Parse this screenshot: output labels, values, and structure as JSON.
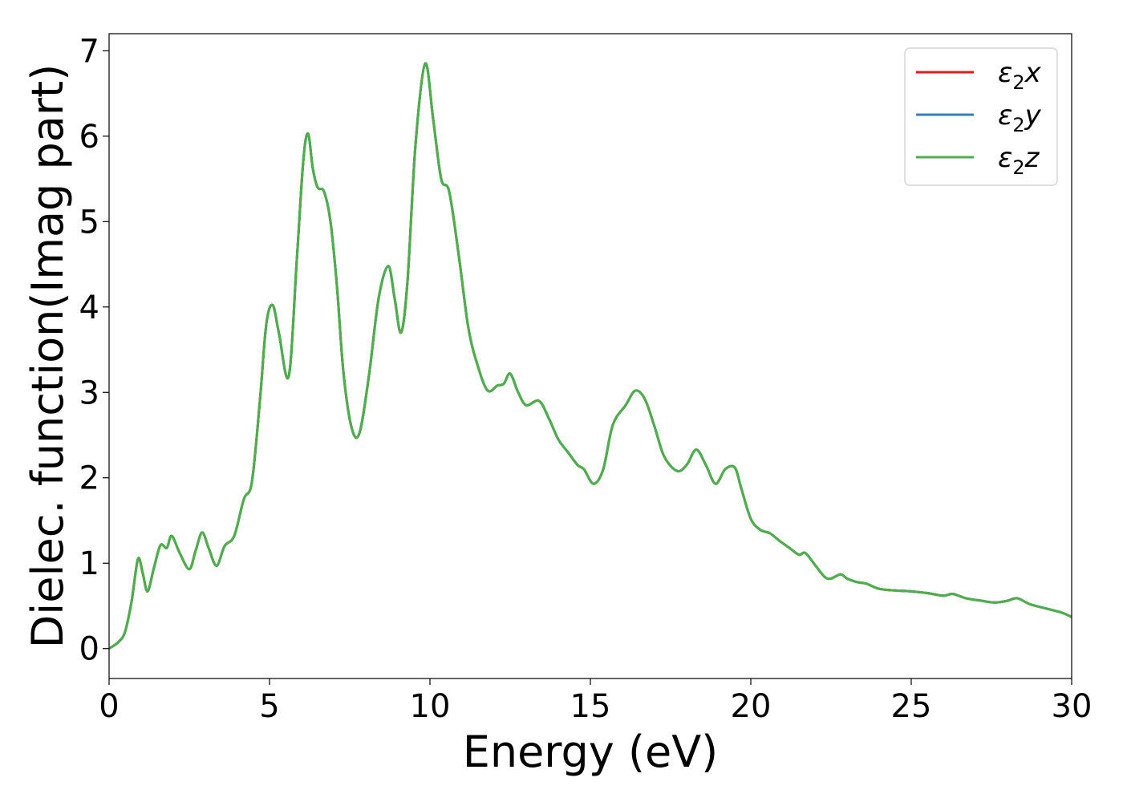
{
  "chart_data": {
    "type": "line",
    "title": "",
    "xlabel": "Energy (eV)",
    "ylabel": "Dielec. function(Imag part)",
    "xlim": [
      0,
      30
    ],
    "ylim": [
      -0.35,
      7.2
    ],
    "xticks": [
      0,
      5,
      10,
      15,
      20,
      25,
      30
    ],
    "yticks": [
      0,
      1,
      2,
      3,
      4,
      5,
      6,
      7
    ],
    "grid": false,
    "legend": {
      "placement": "top-right"
    },
    "series": [
      {
        "name": "ε₂x",
        "name_base": "ε",
        "name_sub": "2",
        "name_axis": "x",
        "color": "#e41a1c"
      },
      {
        "name": "ε₂y",
        "name_base": "ε",
        "name_sub": "2",
        "name_axis": "y",
        "color": "#377eb8"
      },
      {
        "name": "ε₂z",
        "name_base": "ε",
        "name_sub": "2",
        "name_axis": "z",
        "color": "#4daf4a"
      }
    ],
    "x": [
      0,
      0.3,
      0.5,
      0.7,
      0.9,
      1.05,
      1.2,
      1.4,
      1.6,
      1.8,
      1.95,
      2.2,
      2.5,
      2.7,
      2.9,
      3.1,
      3.35,
      3.6,
      3.9,
      4.2,
      4.45,
      4.7,
      4.9,
      5.1,
      5.3,
      5.6,
      5.85,
      6.05,
      6.2,
      6.35,
      6.5,
      6.7,
      6.9,
      7.1,
      7.3,
      7.55,
      7.8,
      8.1,
      8.4,
      8.7,
      8.9,
      9.1,
      9.3,
      9.55,
      9.85,
      10.1,
      10.35,
      10.6,
      10.9,
      11.2,
      11.5,
      11.8,
      12.1,
      12.3,
      12.5,
      12.75,
      13.0,
      13.4,
      13.7,
      14.0,
      14.3,
      14.6,
      14.8,
      15.1,
      15.4,
      15.7,
      16.1,
      16.4,
      16.7,
      17.0,
      17.3,
      17.7,
      18.0,
      18.3,
      18.6,
      18.9,
      19.2,
      19.5,
      19.7,
      20.0,
      20.3,
      20.6,
      20.9,
      21.2,
      21.5,
      21.7,
      22.0,
      22.3,
      22.5,
      22.8,
      23.0,
      23.3,
      23.6,
      24.0,
      24.5,
      25.0,
      25.5,
      26.0,
      26.3,
      26.7,
      27.2,
      27.6,
      28.0,
      28.3,
      28.7,
      29.2,
      29.7,
      30.0
    ],
    "values": [
      0.0,
      0.08,
      0.2,
      0.55,
      1.05,
      0.88,
      0.67,
      0.95,
      1.21,
      1.18,
      1.32,
      1.12,
      0.93,
      1.15,
      1.36,
      1.18,
      0.97,
      1.2,
      1.32,
      1.75,
      1.95,
      2.9,
      3.8,
      4.02,
      3.68,
      3.19,
      4.55,
      5.7,
      6.03,
      5.62,
      5.4,
      5.35,
      5.0,
      4.25,
      3.25,
      2.6,
      2.52,
      3.2,
      4.1,
      4.48,
      4.1,
      3.7,
      4.3,
      5.9,
      6.85,
      6.2,
      5.5,
      5.35,
      4.6,
      3.75,
      3.3,
      3.02,
      3.08,
      3.1,
      3.22,
      3.0,
      2.85,
      2.9,
      2.7,
      2.45,
      2.3,
      2.15,
      2.1,
      1.93,
      2.1,
      2.62,
      2.85,
      3.02,
      2.92,
      2.6,
      2.25,
      2.08,
      2.15,
      2.33,
      2.15,
      1.93,
      2.1,
      2.12,
      1.88,
      1.52,
      1.39,
      1.35,
      1.26,
      1.18,
      1.1,
      1.12,
      0.98,
      0.84,
      0.82,
      0.87,
      0.82,
      0.78,
      0.76,
      0.7,
      0.68,
      0.67,
      0.65,
      0.62,
      0.64,
      0.59,
      0.56,
      0.54,
      0.56,
      0.59,
      0.52,
      0.47,
      0.42,
      0.37
    ]
  }
}
